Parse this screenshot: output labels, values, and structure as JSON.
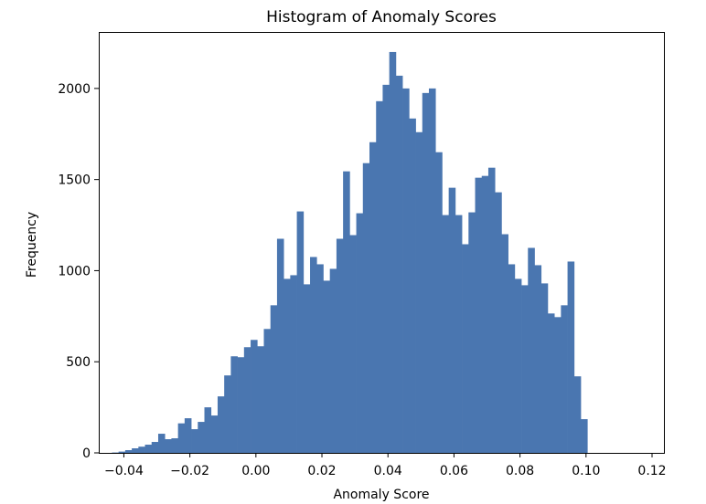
{
  "chart_data": {
    "type": "bar",
    "title": "Histogram of Anomaly Scores",
    "xlabel": "Anomaly Score",
    "ylabel": "Frequency",
    "xlim": [
      -0.0476,
      0.1236
    ],
    "ylim": [
      0,
      2310
    ],
    "x_ticks": [
      -0.04,
      -0.02,
      0.0,
      0.02,
      0.04,
      0.06,
      0.08,
      0.1,
      0.12
    ],
    "x_tick_labels": [
      "−0.04",
      "−0.02",
      "0.00",
      "0.02",
      "0.04",
      "0.06",
      "0.08",
      "0.10",
      "0.12"
    ],
    "y_ticks": [
      0,
      500,
      1000,
      1500,
      2000
    ],
    "y_tick_labels": [
      "0",
      "500",
      "1000",
      "1500",
      "2000"
    ],
    "bin_start": -0.0436,
    "bin_width": 0.002,
    "values": [
      2,
      7,
      15,
      25,
      34,
      45,
      60,
      105,
      75,
      80,
      162,
      190,
      130,
      170,
      250,
      205,
      310,
      425,
      530,
      525,
      580,
      620,
      585,
      680,
      810,
      1175,
      955,
      975,
      1325,
      925,
      1075,
      1035,
      945,
      1010,
      1175,
      1545,
      1195,
      1315,
      1590,
      1705,
      1930,
      2020,
      2200,
      2070,
      2000,
      1835,
      1760,
      1975,
      2000,
      1650,
      1305,
      1455,
      1305,
      1145,
      1320,
      1510,
      1520,
      1565,
      1430,
      1200,
      1035,
      955,
      920,
      1125,
      1030,
      930,
      765,
      745,
      810,
      1050,
      420,
      185
    ],
    "bar_color": "#4a76b0",
    "grid": false,
    "legend": "none"
  }
}
